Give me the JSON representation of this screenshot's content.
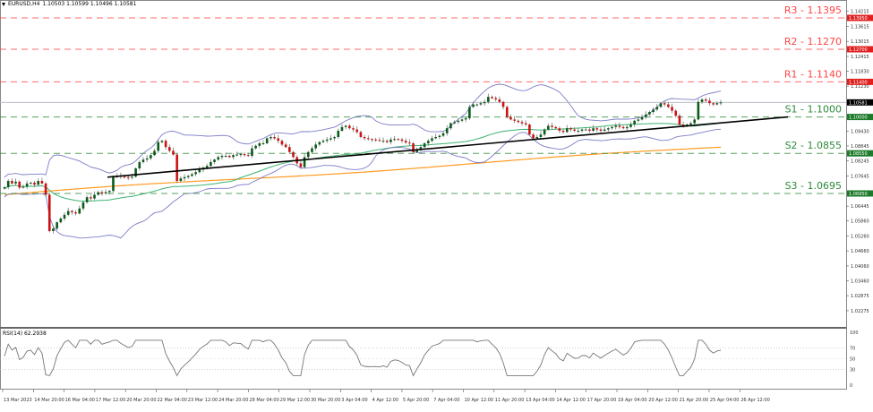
{
  "window": {
    "symbol_timeframe": "EURUSD,H4",
    "ohlc": "1.10503 1.10599 1.10496 1.10581"
  },
  "rsi": {
    "label": "RSI(14) 62.2938",
    "levels": [
      100,
      70,
      50,
      30,
      0
    ]
  },
  "colors": {
    "bull": "#0a5a1a",
    "bear": "#cc1111",
    "resistance": "#ff4444",
    "support": "#2e8b3a",
    "trendline": "#000000",
    "bb": "#7b7bc8",
    "ma_green": "#3cb371",
    "ma_orange": "#ff9a1f",
    "current_price_bg": "#000000",
    "rsi_line": "#777777"
  },
  "chart_data": {
    "type": "candlestick",
    "title": "EURUSD,H4",
    "ylim": [
      1.01675,
      1.14515
    ],
    "y_ticks": [
      "1.14215",
      "1.13615",
      "1.13015",
      "1.12415",
      "1.11830",
      "1.11230",
      "1.09430",
      "1.08845",
      "1.08245",
      "1.07645",
      "1.06445",
      "1.05860",
      "1.05260",
      "1.04660",
      "1.04060",
      "1.03460",
      "1.02875",
      "1.02275",
      "1.01675"
    ],
    "x_ticks": [
      "13 Mar 2023",
      "14 Mar 20:00",
      "16 Mar 04:00",
      "17 Mar 12:00",
      "20 Mar 20:00",
      "22 Mar 04:00",
      "23 Mar 12:00",
      "24 Mar 20:00",
      "28 Mar 04:00",
      "29 Mar 12:00",
      "30 Mar 20:00",
      "3 Apr 04:00",
      "4 Apr 12:00",
      "5 Apr 20:00",
      "7 Apr 04:00",
      "10 Apr 12:00",
      "11 Apr 20:00",
      "13 Apr 04:00",
      "14 Apr 12:00",
      "17 Apr 20:00",
      "19 Apr 04:00",
      "20 Apr 12:00",
      "21 Apr 20:00",
      "25 Apr 04:00",
      "26 Apr 12:00"
    ],
    "current_price": "1.10581",
    "levels": [
      {
        "name": "R3",
        "label": "R3 - 1.1395",
        "value": 1.1395,
        "axis_label": "1.13950",
        "kind": "resistance"
      },
      {
        "name": "R2",
        "label": "R2 - 1.1270",
        "value": 1.127,
        "axis_label": "1.12700",
        "kind": "resistance"
      },
      {
        "name": "R1",
        "label": "R1 - 1.1140",
        "value": 1.114,
        "axis_label": "1.11400",
        "kind": "resistance"
      },
      {
        "name": "S1",
        "label": "S1 - 1.1000",
        "value": 1.1,
        "axis_label": "1.10000",
        "kind": "support"
      },
      {
        "name": "S2",
        "label": "S2 - 1.0855",
        "value": 1.0855,
        "axis_label": "1.08550",
        "kind": "support"
      },
      {
        "name": "S3",
        "label": "S3 - 1.0695",
        "value": 1.0695,
        "axis_label": "1.06950",
        "kind": "support"
      }
    ],
    "trendline": {
      "from": [
        120,
        1.076
      ],
      "to": [
        880,
        1.1
      ]
    },
    "close_path": [
      1.072,
      1.0745,
      1.0735,
      1.0742,
      1.0718,
      1.0722,
      1.0735,
      1.0738,
      1.073,
      1.0745,
      1.0735,
      1.069,
      1.0545,
      1.0555,
      1.058,
      1.0595,
      1.061,
      1.0625,
      1.062,
      1.0615,
      1.0635,
      1.066,
      1.068,
      1.0675,
      1.069,
      1.07,
      1.0695,
      1.07,
      1.0705,
      1.076,
      1.0765,
      1.0762,
      1.076,
      1.0758,
      1.0762,
      1.0795,
      1.082,
      1.083,
      1.0835,
      1.0848,
      1.0865,
      1.09,
      1.0905,
      1.088,
      1.0865,
      1.085,
      1.0745,
      1.0755,
      1.076,
      1.0765,
      1.0772,
      1.078,
      1.079,
      1.0798,
      1.0805,
      1.082,
      1.083,
      1.084,
      1.0845,
      1.0845,
      1.084,
      1.0848,
      1.085,
      1.0852,
      1.0848,
      1.0845,
      1.0875,
      1.0885,
      1.0895,
      1.0895,
      1.0915,
      1.092,
      1.0915,
      1.0905,
      1.089,
      1.088,
      1.086,
      1.084,
      1.0815,
      1.08,
      1.084,
      1.086,
      1.0875,
      1.089,
      1.09,
      1.0905,
      1.091,
      1.0915,
      1.092,
      1.0945,
      1.096,
      1.0965,
      1.0955,
      1.095,
      1.094,
      1.092,
      1.0915,
      1.0912,
      1.091,
      1.0908,
      1.0905,
      1.0905,
      1.09,
      1.091,
      1.0912,
      1.091,
      1.0905,
      1.0898,
      1.0895,
      1.086,
      1.087,
      1.088,
      1.0895,
      1.0905,
      1.0915,
      1.092,
      1.0925,
      1.0935,
      1.0955,
      1.0975,
      1.098,
      1.0985,
      1.099,
      1.0995,
      1.104,
      1.105,
      1.105,
      1.1055,
      1.106,
      1.108,
      1.1075,
      1.107,
      1.106,
      1.104,
      1.1,
      1.099,
      1.0985,
      1.098,
      1.0975,
      1.097,
      1.093,
      1.0915,
      1.092,
      1.093,
      1.095,
      1.0965,
      1.096,
      1.0955,
      1.0945,
      1.094,
      1.0955,
      1.095,
      1.0945,
      1.0945,
      1.095,
      1.095,
      1.0945,
      1.0955,
      1.095,
      1.0945,
      1.095,
      1.0955,
      1.096,
      1.0965,
      1.096,
      1.0955,
      1.096,
      1.097,
      1.0985,
      1.099,
      1.1,
      1.101,
      1.102,
      1.103,
      1.104,
      1.1055,
      1.105,
      1.104,
      1.1025,
      1.1005,
      1.097,
      1.0965,
      1.097,
      1.0975,
      1.099,
      1.106,
      1.107,
      1.1065,
      1.1055,
      1.105,
      1.1055,
      1.1058
    ]
  }
}
